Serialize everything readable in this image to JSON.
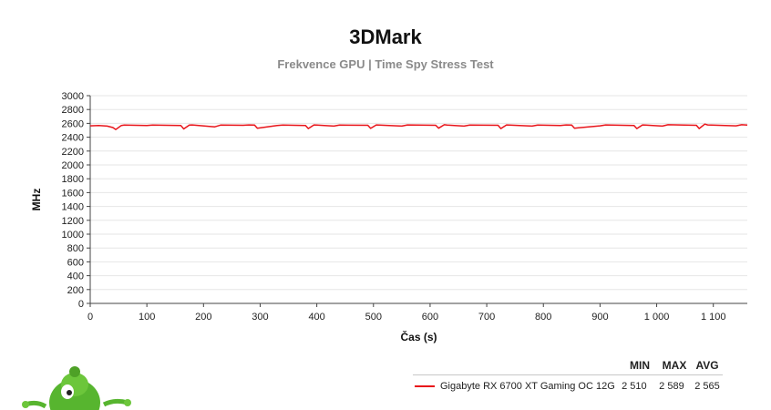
{
  "header": {
    "title": "3DMark",
    "subtitle": "Frekvence GPU | Time Spy Stress Test"
  },
  "legend": {
    "col_min": "MIN",
    "col_max": "MAX",
    "col_avg": "AVG",
    "rows": [
      {
        "name": "Gigabyte RX 6700 XT Gaming OC 12G",
        "min": "2 510",
        "max": "2 589",
        "avg": "2 565",
        "color": "#e8141a"
      }
    ]
  },
  "chart_data": {
    "type": "line",
    "xlabel": "Čas (s)",
    "ylabel": "MHz",
    "xlim": [
      0,
      1160
    ],
    "ylim": [
      0,
      3000
    ],
    "xticks": [
      0,
      100,
      200,
      300,
      400,
      500,
      600,
      700,
      800,
      900,
      1000,
      1100
    ],
    "xtick_labels": [
      "0",
      "100",
      "200",
      "300",
      "400",
      "500",
      "600",
      "700",
      "800",
      "900",
      "1 000",
      "1 100"
    ],
    "yticks": [
      0,
      200,
      400,
      600,
      800,
      1000,
      1200,
      1400,
      1600,
      1800,
      2000,
      2200,
      2400,
      2600,
      2800,
      3000
    ],
    "ytick_labels": [
      "0",
      "200",
      "400",
      "600",
      "800",
      "1000",
      "1200",
      "1400",
      "1600",
      "1800",
      "2000",
      "2200",
      "2400",
      "2600",
      "2800",
      "3000"
    ],
    "grid": true,
    "series": [
      {
        "name": "Gigabyte RX 6700 XT Gaming OC 12G",
        "color": "#e8141a",
        "x": [
          0,
          15,
          30,
          40,
          45,
          55,
          60,
          100,
          110,
          160,
          165,
          175,
          180,
          220,
          230,
          270,
          280,
          290,
          295,
          330,
          340,
          380,
          385,
          395,
          400,
          430,
          440,
          490,
          495,
          505,
          510,
          550,
          560,
          610,
          615,
          625,
          630,
          660,
          670,
          720,
          725,
          735,
          740,
          780,
          790,
          830,
          840,
          850,
          855,
          900,
          910,
          960,
          965,
          975,
          980,
          1010,
          1020,
          1070,
          1075,
          1085,
          1090,
          1140,
          1150,
          1160
        ],
        "y": [
          2565,
          2570,
          2560,
          2540,
          2510,
          2570,
          2575,
          2570,
          2575,
          2570,
          2520,
          2575,
          2578,
          2550,
          2575,
          2572,
          2578,
          2575,
          2530,
          2570,
          2575,
          2570,
          2525,
          2578,
          2575,
          2560,
          2575,
          2572,
          2528,
          2578,
          2575,
          2560,
          2578,
          2572,
          2530,
          2580,
          2575,
          2560,
          2575,
          2572,
          2525,
          2578,
          2575,
          2560,
          2575,
          2570,
          2578,
          2575,
          2530,
          2565,
          2578,
          2570,
          2525,
          2578,
          2575,
          2560,
          2580,
          2572,
          2525,
          2589,
          2578,
          2565,
          2580,
          2575
        ]
      }
    ]
  }
}
